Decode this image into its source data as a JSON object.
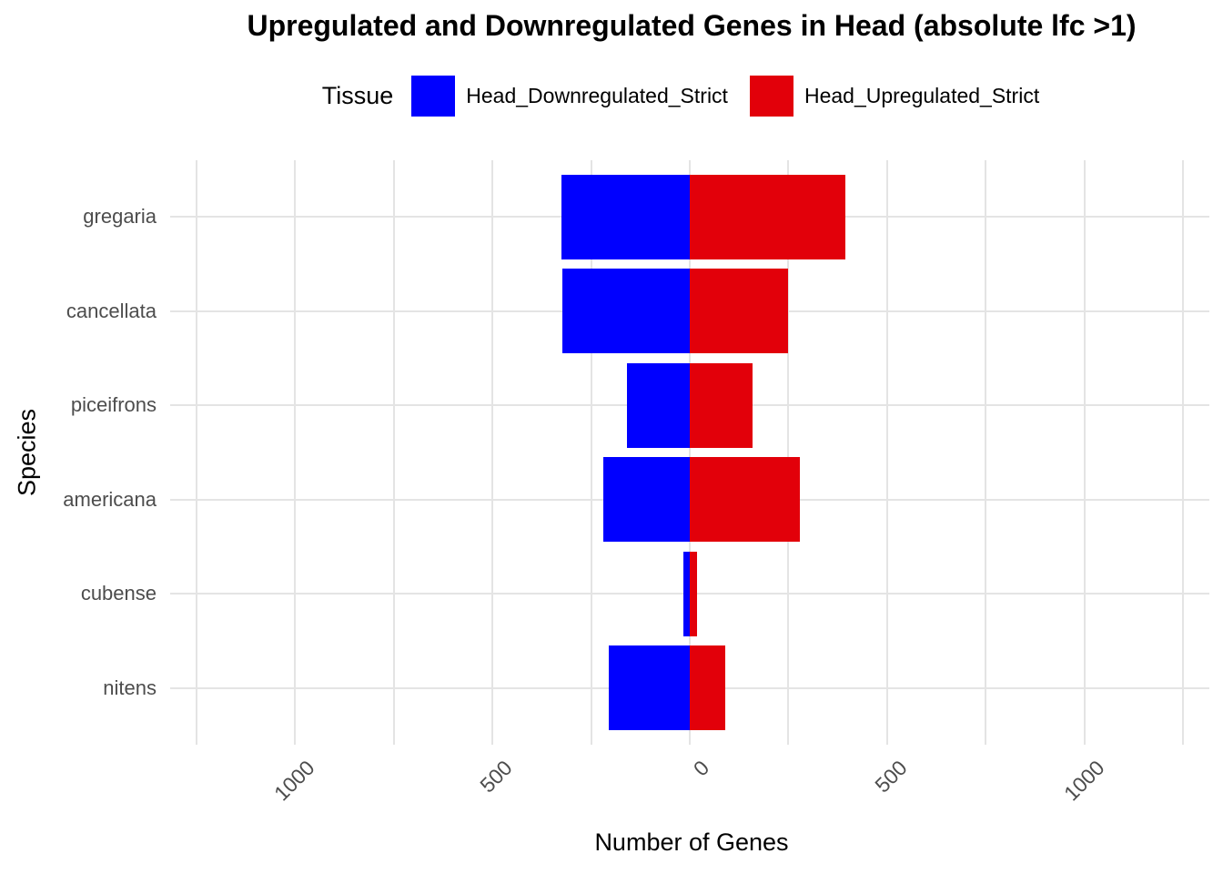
{
  "title": "Upregulated and Downregulated Genes in Head (absolute lfc >1)",
  "legend": {
    "title": "Tissue",
    "items": [
      {
        "label": "Head_Downregulated_Strict",
        "color": "#0000FF"
      },
      {
        "label": "Head_Upregulated_Strict",
        "color": "#E2000A"
      }
    ]
  },
  "axes": {
    "x_title": "Number of Genes",
    "y_title": "Species"
  },
  "chart_data": {
    "type": "bar",
    "subtype": "diverging-horizontal",
    "title": "Upregulated and Downregulated Genes in Head (absolute lfc >1)",
    "xlabel": "Number of Genes",
    "ylabel": "Species",
    "categories": [
      "gregaria",
      "cancellata",
      "piceifrons",
      "americana",
      "cubense",
      "nitens"
    ],
    "series": [
      {
        "name": "Head_Downregulated_Strict",
        "color": "#0000FF",
        "side": "negative",
        "values": [
          325,
          322,
          158,
          220,
          17,
          204
        ]
      },
      {
        "name": "Head_Upregulated_Strict",
        "color": "#E2000A",
        "side": "positive",
        "values": [
          394,
          248,
          160,
          280,
          18,
          89
        ]
      }
    ],
    "x_axis": {
      "tick_values": [
        -1000,
        -500,
        0,
        500,
        1000
      ],
      "tick_labels": [
        "1000",
        "500",
        "0",
        "500",
        "1000"
      ],
      "tick_label_angle": 45,
      "gridline_step": 250,
      "xlim": [
        -1316,
        1316
      ]
    },
    "grid": true,
    "legend_position": "top",
    "bar_width_fraction": 0.9,
    "colors": {
      "grid": "#E4E4E4",
      "axis_text": "#4D4D4D",
      "title_text": "#000000",
      "background": "#FFFFFF"
    }
  }
}
